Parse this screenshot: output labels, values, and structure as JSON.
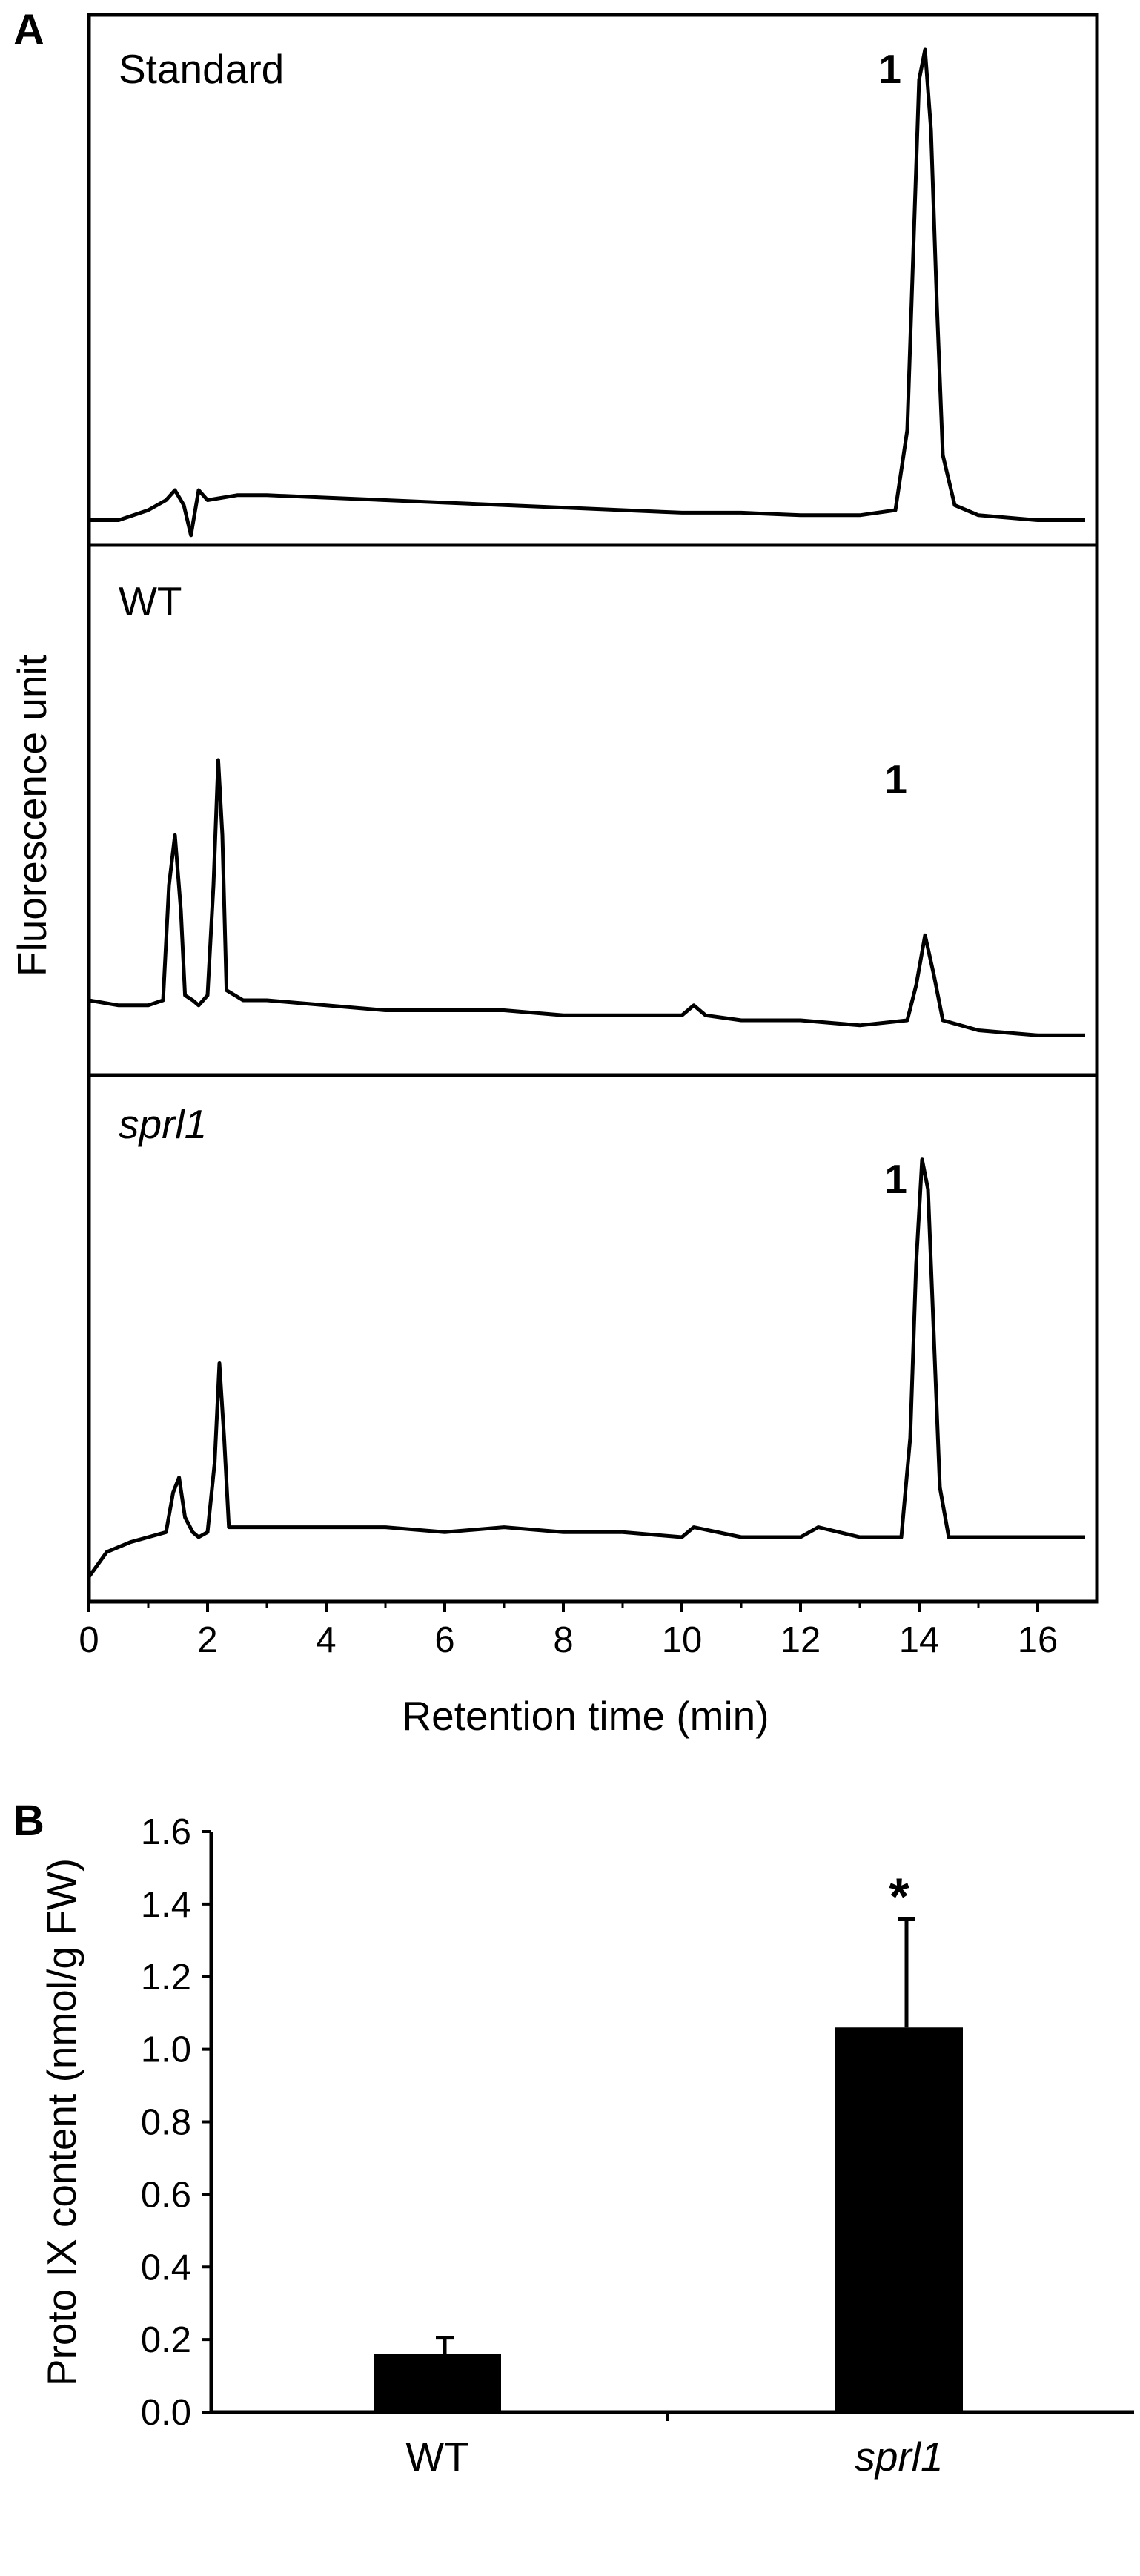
{
  "panel_a_label": "A",
  "panel_b_label": "B",
  "chart_data": [
    {
      "type": "line",
      "panel": "A",
      "xlabel": "Retention time (min)",
      "ylabel": "Fluorescence unit",
      "xlim": [
        0,
        17
      ],
      "x_ticks": [
        0,
        2,
        4,
        6,
        8,
        10,
        12,
        14,
        16
      ],
      "y_tick_labels": "none",
      "series": [
        {
          "name": "Standard",
          "peak_label": "1",
          "peak_label_x": 13.7,
          "points": [
            [
              0,
              0.02
            ],
            [
              0.5,
              0.02
            ],
            [
              1.0,
              0.04
            ],
            [
              1.3,
              0.06
            ],
            [
              1.45,
              0.08
            ],
            [
              1.6,
              0.05
            ],
            [
              1.72,
              -0.01
            ],
            [
              1.85,
              0.08
            ],
            [
              2.0,
              0.06
            ],
            [
              2.5,
              0.07
            ],
            [
              3,
              0.07
            ],
            [
              4,
              0.065
            ],
            [
              5,
              0.06
            ],
            [
              6,
              0.055
            ],
            [
              7,
              0.05
            ],
            [
              8,
              0.045
            ],
            [
              9,
              0.04
            ],
            [
              10,
              0.035
            ],
            [
              11,
              0.035
            ],
            [
              12,
              0.03
            ],
            [
              13,
              0.03
            ],
            [
              13.6,
              0.04
            ],
            [
              13.8,
              0.2
            ],
            [
              13.9,
              0.55
            ],
            [
              14.0,
              0.9
            ],
            [
              14.1,
              0.96
            ],
            [
              14.2,
              0.8
            ],
            [
              14.3,
              0.45
            ],
            [
              14.4,
              0.15
            ],
            [
              14.6,
              0.05
            ],
            [
              15,
              0.03
            ],
            [
              16,
              0.02
            ],
            [
              16.8,
              0.02
            ]
          ]
        },
        {
          "name": "WT",
          "peak_label": "1",
          "peak_label_x": 13.8,
          "points": [
            [
              0,
              0.12
            ],
            [
              0.5,
              0.11
            ],
            [
              1.0,
              0.11
            ],
            [
              1.25,
              0.12
            ],
            [
              1.35,
              0.35
            ],
            [
              1.45,
              0.45
            ],
            [
              1.55,
              0.3
            ],
            [
              1.62,
              0.13
            ],
            [
              1.75,
              0.12
            ],
            [
              1.85,
              0.11
            ],
            [
              2.0,
              0.13
            ],
            [
              2.1,
              0.35
            ],
            [
              2.18,
              0.6
            ],
            [
              2.25,
              0.45
            ],
            [
              2.32,
              0.14
            ],
            [
              2.6,
              0.12
            ],
            [
              3,
              0.12
            ],
            [
              4,
              0.11
            ],
            [
              5,
              0.1
            ],
            [
              6,
              0.1
            ],
            [
              7,
              0.1
            ],
            [
              8,
              0.09
            ],
            [
              9,
              0.09
            ],
            [
              10,
              0.09
            ],
            [
              10.2,
              0.11
            ],
            [
              10.4,
              0.09
            ],
            [
              11,
              0.08
            ],
            [
              12,
              0.08
            ],
            [
              13,
              0.07
            ],
            [
              13.8,
              0.08
            ],
            [
              13.95,
              0.15
            ],
            [
              14.1,
              0.25
            ],
            [
              14.25,
              0.17
            ],
            [
              14.4,
              0.08
            ],
            [
              15,
              0.06
            ],
            [
              16,
              0.05
            ],
            [
              16.8,
              0.05
            ]
          ]
        },
        {
          "name": "sprl1",
          "peak_label": "1",
          "peak_label_x": 13.8,
          "points": [
            [
              0,
              0.02
            ],
            [
              0.3,
              0.07
            ],
            [
              0.7,
              0.09
            ],
            [
              1.0,
              0.1
            ],
            [
              1.3,
              0.11
            ],
            [
              1.42,
              0.19
            ],
            [
              1.52,
              0.22
            ],
            [
              1.62,
              0.14
            ],
            [
              1.75,
              0.11
            ],
            [
              1.85,
              0.1
            ],
            [
              2.0,
              0.11
            ],
            [
              2.12,
              0.25
            ],
            [
              2.2,
              0.45
            ],
            [
              2.28,
              0.3
            ],
            [
              2.36,
              0.12
            ],
            [
              3,
              0.12
            ],
            [
              4,
              0.12
            ],
            [
              5,
              0.12
            ],
            [
              6,
              0.11
            ],
            [
              7,
              0.12
            ],
            [
              8,
              0.11
            ],
            [
              9,
              0.11
            ],
            [
              10,
              0.1
            ],
            [
              10.2,
              0.12
            ],
            [
              11,
              0.1
            ],
            [
              12,
              0.1
            ],
            [
              12.3,
              0.12
            ],
            [
              13,
              0.1
            ],
            [
              13.7,
              0.1
            ],
            [
              13.85,
              0.3
            ],
            [
              13.95,
              0.65
            ],
            [
              14.05,
              0.86
            ],
            [
              14.15,
              0.8
            ],
            [
              14.25,
              0.5
            ],
            [
              14.35,
              0.2
            ],
            [
              14.5,
              0.1
            ],
            [
              15,
              0.1
            ],
            [
              16,
              0.1
            ],
            [
              16.8,
              0.1
            ]
          ]
        }
      ]
    },
    {
      "type": "bar",
      "panel": "B",
      "categories": [
        "WT",
        "sprl1"
      ],
      "values": [
        0.16,
        1.06
      ],
      "error": [
        0.045,
        0.3
      ],
      "significance": [
        "",
        "*"
      ],
      "ylabel": "Proto IX content (nmol/g FW)",
      "ylim": [
        0,
        1.6
      ],
      "y_ticks": [
        "0.0",
        "0.2",
        "0.4",
        "0.6",
        "0.8",
        "1.0",
        "1.2",
        "1.4",
        "1.6"
      ]
    }
  ]
}
